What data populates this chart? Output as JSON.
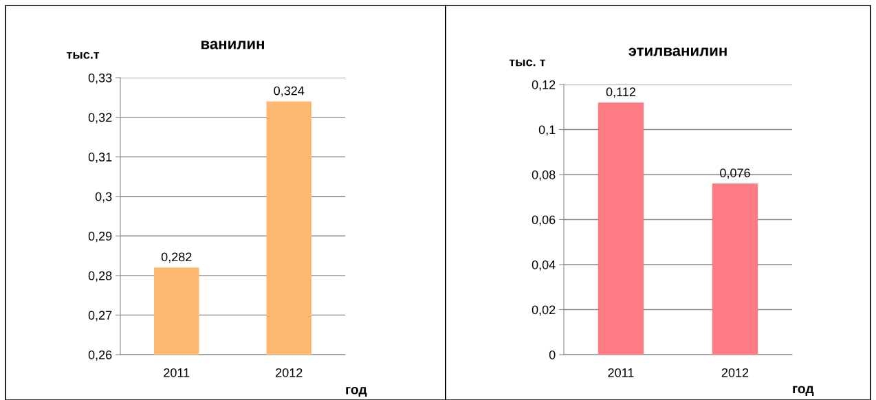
{
  "chart_data": [
    {
      "type": "bar",
      "title": "ванилин",
      "ylabel": "тыс.т",
      "xlabel": "год",
      "categories": [
        "2011",
        "2012"
      ],
      "values": [
        0.282,
        0.324
      ],
      "color": "#ffb871",
      "value_labels": [
        "0,282",
        "0,324"
      ],
      "ylim": [
        0.26,
        0.33
      ],
      "yticks": [
        {
          "value": 0.26,
          "label": "0,26"
        },
        {
          "value": 0.27,
          "label": "0,27"
        },
        {
          "value": 0.28,
          "label": "0,28"
        },
        {
          "value": 0.29,
          "label": "0,29"
        },
        {
          "value": 0.3,
          "label": "0,3"
        },
        {
          "value": 0.31,
          "label": "0,31"
        },
        {
          "value": 0.32,
          "label": "0,32"
        },
        {
          "value": 0.33,
          "label": "0,33"
        }
      ],
      "grid": "y"
    },
    {
      "type": "bar",
      "title": "этилванилин",
      "ylabel": "тыс. т",
      "xlabel": "год",
      "categories": [
        "2011",
        "2012"
      ],
      "values": [
        0.112,
        0.076
      ],
      "color": "#ff7b84",
      "value_labels": [
        "0,112",
        "0,076"
      ],
      "ylim": [
        0,
        0.12
      ],
      "yticks": [
        0,
        {
          "value": 0.02,
          "label": "0,02"
        },
        {
          "value": 0.04,
          "label": "0,04"
        },
        {
          "value": 0.06,
          "label": "0,06"
        },
        {
          "value": 0.08,
          "label": "0,08"
        },
        {
          "value": 0.1,
          "label": "0,1"
        },
        {
          "value": 0.12,
          "label": "0,12"
        }
      ],
      "grid": "y"
    }
  ]
}
